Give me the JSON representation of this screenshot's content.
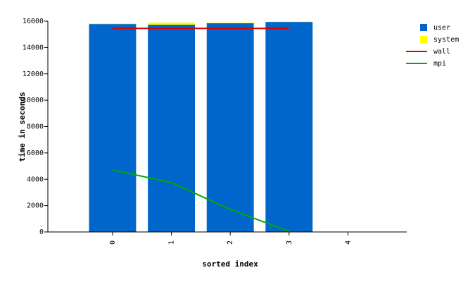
{
  "chart_data": {
    "type": "bar",
    "xlabel": "sorted index",
    "ylabel": "time in seconds",
    "x": [
      0,
      1,
      2,
      3
    ],
    "xlim": [
      -1.1,
      5
    ],
    "xticks": [
      0,
      1,
      2,
      3,
      4
    ],
    "ylim": [
      0,
      16000
    ],
    "yticks": [
      0,
      2000,
      4000,
      6000,
      8000,
      10000,
      12000,
      14000,
      16000
    ],
    "series": [
      {
        "name": "user",
        "type": "bar",
        "color": "#0066cc",
        "values": [
          15780,
          15730,
          15840,
          15940
        ]
      },
      {
        "name": "system",
        "type": "bar",
        "color": "#ffff00",
        "values": [
          50,
          160,
          50,
          30
        ]
      },
      {
        "name": "wall",
        "type": "line",
        "color": "#dd0000",
        "values": [
          15450,
          15450,
          15450,
          15450
        ]
      },
      {
        "name": "mpi",
        "type": "line",
        "color": "#00aa00",
        "values": [
          4710,
          3745,
          1710,
          50
        ]
      }
    ]
  }
}
